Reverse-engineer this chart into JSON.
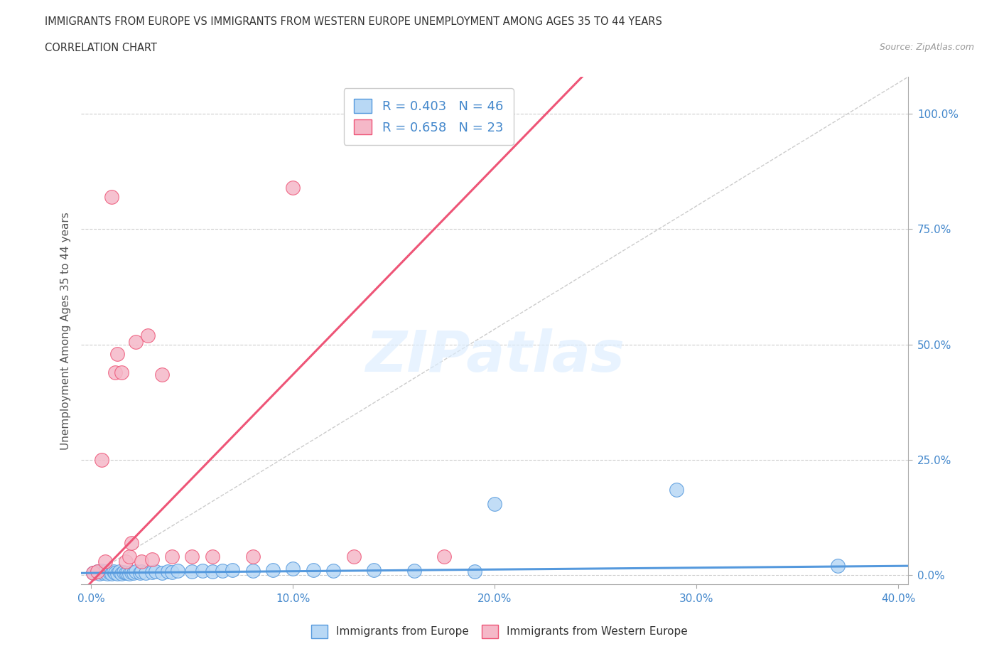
{
  "title_line1": "IMMIGRANTS FROM EUROPE VS IMMIGRANTS FROM WESTERN EUROPE UNEMPLOYMENT AMONG AGES 35 TO 44 YEARS",
  "title_line2": "CORRELATION CHART",
  "source_text": "Source: ZipAtlas.com",
  "ylabel": "Unemployment Among Ages 35 to 44 years",
  "xlim": [
    -0.005,
    0.405
  ],
  "ylim": [
    -0.02,
    1.08
  ],
  "xticks": [
    0.0,
    0.1,
    0.2,
    0.3,
    0.4
  ],
  "xtick_labels": [
    "0.0%",
    "10.0%",
    "20.0%",
    "30.0%",
    "40.0%"
  ],
  "yticks": [
    0.0,
    0.25,
    0.5,
    0.75,
    1.0
  ],
  "ytick_labels": [
    "0.0%",
    "25.0%",
    "50.0%",
    "75.0%",
    "100.0%"
  ],
  "color_blue": "#b8d8f5",
  "color_pink": "#f5b8c8",
  "color_blue_line": "#5599dd",
  "color_pink_line": "#ee5577",
  "legend_R1": "R = 0.403",
  "legend_N1": "N = 46",
  "legend_R2": "R = 0.658",
  "legend_N2": "N = 23",
  "watermark": "ZIPatlas",
  "blue_slope": 0.038,
  "blue_intercept": 0.005,
  "pink_slope": 4.5,
  "pink_intercept": -0.015,
  "blue_x": [
    0.001,
    0.003,
    0.004,
    0.005,
    0.006,
    0.007,
    0.008,
    0.009,
    0.01,
    0.011,
    0.012,
    0.013,
    0.014,
    0.015,
    0.016,
    0.017,
    0.018,
    0.019,
    0.02,
    0.021,
    0.022,
    0.024,
    0.025,
    0.027,
    0.03,
    0.032,
    0.035,
    0.038,
    0.04,
    0.043,
    0.05,
    0.055,
    0.06,
    0.065,
    0.07,
    0.08,
    0.09,
    0.1,
    0.11,
    0.12,
    0.14,
    0.16,
    0.19,
    0.2,
    0.29,
    0.37
  ],
  "blue_y": [
    0.005,
    0.008,
    0.003,
    0.01,
    0.005,
    0.008,
    0.003,
    0.007,
    0.004,
    0.009,
    0.006,
    0.004,
    0.008,
    0.003,
    0.007,
    0.005,
    0.006,
    0.004,
    0.007,
    0.005,
    0.008,
    0.006,
    0.009,
    0.005,
    0.007,
    0.008,
    0.006,
    0.009,
    0.007,
    0.01,
    0.009,
    0.01,
    0.008,
    0.01,
    0.012,
    0.01,
    0.012,
    0.015,
    0.012,
    0.01,
    0.012,
    0.01,
    0.008,
    0.155,
    0.185,
    0.02
  ],
  "pink_x": [
    0.001,
    0.003,
    0.005,
    0.007,
    0.01,
    0.012,
    0.013,
    0.015,
    0.017,
    0.019,
    0.02,
    0.022,
    0.025,
    0.028,
    0.03,
    0.035,
    0.04,
    0.05,
    0.06,
    0.08,
    0.1,
    0.13,
    0.175
  ],
  "pink_y": [
    0.005,
    0.008,
    0.25,
    0.03,
    0.82,
    0.44,
    0.48,
    0.44,
    0.03,
    0.04,
    0.07,
    0.505,
    0.03,
    0.52,
    0.035,
    0.435,
    0.04,
    0.04,
    0.04,
    0.04,
    0.84,
    0.04,
    0.04
  ]
}
